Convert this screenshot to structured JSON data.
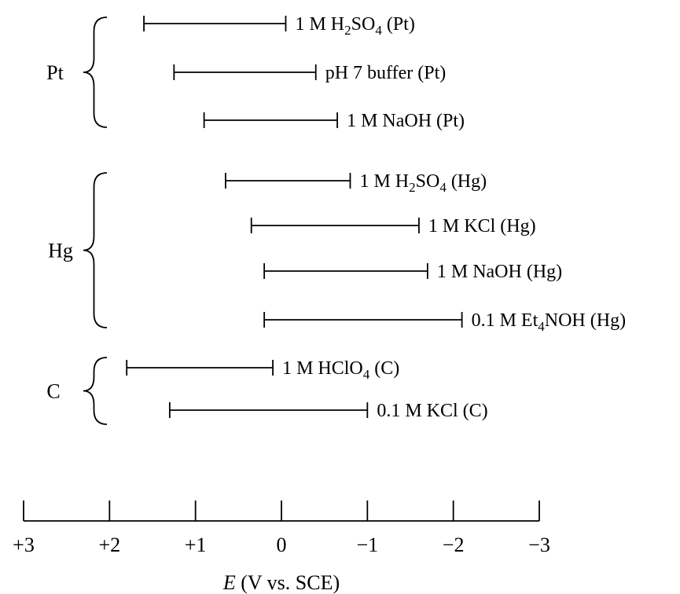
{
  "chart_data": {
    "type": "range",
    "xlabel_var": "E",
    "xlabel_rest": " (V vs. SCE)",
    "xlim": [
      3,
      -3
    ],
    "ticks": [
      {
        "value": 3,
        "label": "+3"
      },
      {
        "value": 2,
        "label": "+2"
      },
      {
        "value": 1,
        "label": "+1"
      },
      {
        "value": 0,
        "label": "0"
      },
      {
        "value": -1,
        "label": "−1"
      },
      {
        "value": -2,
        "label": "−2"
      },
      {
        "value": -3,
        "label": "−3"
      }
    ],
    "groups": [
      {
        "label": "Pt",
        "ranges": [
          {
            "label_parts": [
              "1 M H",
              {
                "sub": "2"
              },
              "SO",
              {
                "sub": "4"
              },
              " (Pt)"
            ],
            "from": 1.6,
            "to": -0.05
          },
          {
            "label_parts": [
              "pH 7 buffer (Pt)"
            ],
            "from": 1.25,
            "to": -0.4
          },
          {
            "label_parts": [
              "1 M NaOH (Pt)"
            ],
            "from": 0.9,
            "to": -0.65
          }
        ]
      },
      {
        "label": "Hg",
        "ranges": [
          {
            "label_parts": [
              "1 M H",
              {
                "sub": "2"
              },
              "SO",
              {
                "sub": "4"
              },
              " (Hg)"
            ],
            "from": 0.65,
            "to": -0.8
          },
          {
            "label_parts": [
              "1 M KCl (Hg)"
            ],
            "from": 0.35,
            "to": -1.6
          },
          {
            "label_parts": [
              "1 M NaOH (Hg)"
            ],
            "from": 0.2,
            "to": -1.7
          },
          {
            "label_parts": [
              "0.1 M Et",
              {
                "sub": "4"
              },
              "NOH (Hg)"
            ],
            "from": 0.2,
            "to": -2.1
          }
        ]
      },
      {
        "label": "C",
        "ranges": [
          {
            "label_parts": [
              "1 M HClO",
              {
                "sub": "4"
              },
              " (C)"
            ],
            "from": 1.8,
            "to": 0.1
          },
          {
            "label_parts": [
              "0.1 M KCl (C)"
            ],
            "from": 1.3,
            "to": -1.0
          }
        ]
      }
    ]
  }
}
